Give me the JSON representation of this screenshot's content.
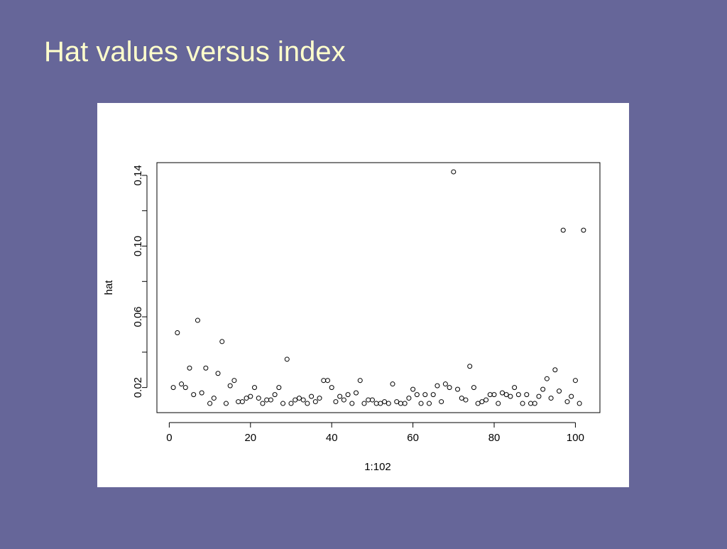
{
  "chart_data": {
    "type": "scatter",
    "title": "Hat values versus index",
    "xlabel": "1:102",
    "ylabel": "hat",
    "x": [
      1,
      2,
      3,
      4,
      5,
      6,
      7,
      8,
      9,
      10,
      11,
      12,
      13,
      14,
      15,
      16,
      17,
      18,
      19,
      20,
      21,
      22,
      23,
      24,
      25,
      26,
      27,
      28,
      29,
      30,
      31,
      32,
      33,
      34,
      35,
      36,
      37,
      38,
      39,
      40,
      41,
      42,
      43,
      44,
      45,
      46,
      47,
      48,
      49,
      50,
      51,
      52,
      53,
      54,
      55,
      56,
      57,
      58,
      59,
      60,
      61,
      62,
      63,
      64,
      65,
      66,
      67,
      68,
      69,
      70,
      71,
      72,
      73,
      74,
      75,
      76,
      77,
      78,
      79,
      80,
      81,
      82,
      83,
      84,
      85,
      86,
      87,
      88,
      89,
      90,
      91,
      92,
      93,
      94,
      95,
      96,
      97,
      98,
      99,
      100,
      101,
      102
    ],
    "values": [
      0.02,
      0.051,
      0.022,
      0.02,
      0.031,
      0.016,
      0.058,
      0.017,
      0.031,
      0.011,
      0.014,
      0.028,
      0.046,
      0.011,
      0.021,
      0.024,
      0.012,
      0.012,
      0.014,
      0.015,
      0.02,
      0.014,
      0.011,
      0.013,
      0.013,
      0.016,
      0.02,
      0.011,
      0.036,
      0.011,
      0.013,
      0.014,
      0.013,
      0.011,
      0.015,
      0.012,
      0.014,
      0.024,
      0.024,
      0.02,
      0.012,
      0.015,
      0.013,
      0.016,
      0.011,
      0.017,
      0.024,
      0.011,
      0.013,
      0.013,
      0.011,
      0.011,
      0.012,
      0.011,
      0.022,
      0.012,
      0.011,
      0.011,
      0.014,
      0.019,
      0.016,
      0.011,
      0.016,
      0.011,
      0.016,
      0.021,
      0.012,
      0.022,
      0.02,
      0.142,
      0.019,
      0.014,
      0.013,
      0.032,
      0.02,
      0.011,
      0.012,
      0.013,
      0.016,
      0.016,
      0.011,
      0.017,
      0.016,
      0.015,
      0.02,
      0.016,
      0.011,
      0.016,
      0.011,
      0.011,
      0.015,
      0.019,
      0.025,
      0.014,
      0.03,
      0.018,
      0.109,
      0.012,
      0.015,
      0.024,
      0.011,
      0.109
    ],
    "color": "#000000",
    "xlim": [
      -3.04,
      106.04
    ],
    "xticks": [
      0,
      20,
      40,
      60,
      80,
      100
    ],
    "ylim": [
      0.0058,
      0.1472
    ],
    "yticks": [
      0.02,
      {
        "value": 0.04,
        "label": null
      },
      0.06,
      {
        "value": 0.08,
        "label": null
      },
      {
        "value": 0.1,
        "label": "0.10"
      },
      {
        "value": 0.12,
        "label": null
      },
      0.14
    ]
  }
}
